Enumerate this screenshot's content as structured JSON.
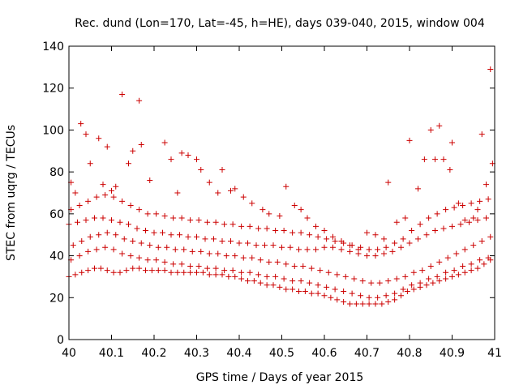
{
  "chart_data": {
    "type": "scatter",
    "title": "Rec. dund (Lon=170, Lat=-45, h=HE), days 039-040, 2015, window 004",
    "xlabel": "GPS time / Days of year 2015",
    "ylabel": "STEC from uqrg / TECUs",
    "xlim": [
      40,
      41
    ],
    "ylim": [
      0,
      140
    ],
    "xticks": [
      "40",
      "40.1",
      "40.2",
      "40.3",
      "40.4",
      "40.5",
      "40.6",
      "40.7",
      "40.8",
      "40.9",
      "41"
    ],
    "yticks": [
      "0",
      "20",
      "40",
      "60",
      "80",
      "100",
      "120",
      "140"
    ],
    "marker": "+",
    "color": "#cc0000",
    "grid": false,
    "legend": "none",
    "series": [
      {
        "name": "base_track",
        "x": [
          40.0,
          40.015,
          40.03,
          40.045,
          40.06,
          40.075,
          40.09,
          40.105,
          40.12,
          40.135,
          40.15,
          40.165,
          40.18,
          40.195,
          40.21,
          40.225,
          40.24,
          40.255,
          40.27,
          40.285,
          40.3,
          40.315,
          40.33,
          40.345,
          40.36,
          40.375,
          40.39,
          40.405,
          40.42,
          40.435,
          40.45,
          40.465,
          40.48,
          40.495,
          40.51,
          40.525,
          40.54,
          40.555,
          40.57,
          40.585,
          40.6,
          40.615,
          40.63,
          40.645,
          40.66,
          40.675,
          40.69,
          40.705,
          40.72,
          40.735,
          40.75,
          40.765,
          40.78,
          40.795,
          40.81,
          40.825,
          40.84,
          40.855,
          40.87,
          40.885,
          40.9,
          40.915,
          40.93,
          40.945,
          40.96,
          40.975,
          40.99
        ],
        "y": [
          30,
          31,
          32,
          33,
          34,
          34,
          33,
          32,
          32,
          33,
          34,
          34,
          33,
          33,
          33,
          33,
          32,
          32,
          32,
          32,
          32,
          32,
          31,
          31,
          31,
          30,
          30,
          29,
          28,
          28,
          27,
          26,
          26,
          25,
          24,
          24,
          23,
          23,
          22,
          22,
          21,
          20,
          19,
          18,
          17,
          17,
          17,
          17,
          17,
          17,
          18,
          19,
          21,
          23,
          24,
          25,
          26,
          27,
          28,
          29,
          30,
          31,
          32,
          33,
          34,
          36,
          38
        ]
      },
      {
        "name": "lower_mid_track",
        "x": [
          40.005,
          40.025,
          40.045,
          40.065,
          40.085,
          40.105,
          40.125,
          40.145,
          40.165,
          40.185,
          40.205,
          40.225,
          40.245,
          40.265,
          40.285,
          40.305,
          40.325,
          40.345,
          40.365,
          40.385,
          40.405,
          40.425,
          40.445,
          40.465,
          40.485,
          40.505,
          40.525,
          40.545,
          40.565,
          40.585,
          40.605,
          40.625,
          40.645,
          40.665,
          40.685,
          40.705,
          40.725,
          40.745,
          40.765,
          40.785,
          40.805,
          40.825,
          40.845,
          40.865,
          40.885,
          40.905,
          40.925,
          40.945,
          40.965,
          40.985
        ],
        "y": [
          38,
          40,
          42,
          43,
          44,
          43,
          41,
          40,
          39,
          38,
          38,
          37,
          36,
          36,
          35,
          35,
          34,
          34,
          33,
          33,
          32,
          32,
          31,
          30,
          30,
          29,
          28,
          28,
          27,
          26,
          25,
          24,
          23,
          22,
          21,
          20,
          20,
          21,
          22,
          24,
          26,
          27,
          29,
          30,
          32,
          33,
          35,
          36,
          38,
          39
        ]
      },
      {
        "name": "middle_track",
        "x": [
          40.01,
          40.03,
          40.05,
          40.07,
          40.09,
          40.11,
          40.13,
          40.15,
          40.17,
          40.19,
          40.21,
          40.23,
          40.25,
          40.27,
          40.29,
          40.31,
          40.33,
          40.35,
          40.37,
          40.39,
          40.41,
          40.43,
          40.45,
          40.47,
          40.49,
          40.51,
          40.53,
          40.55,
          40.57,
          40.59,
          40.61,
          40.63,
          40.65,
          40.67,
          40.69,
          40.71,
          40.73,
          40.75,
          40.77,
          40.79,
          40.81,
          40.83,
          40.85,
          40.87,
          40.89,
          40.91,
          40.93,
          40.95,
          40.97,
          40.99
        ],
        "y": [
          45,
          47,
          49,
          50,
          51,
          50,
          48,
          47,
          46,
          45,
          44,
          44,
          43,
          43,
          42,
          42,
          41,
          41,
          40,
          40,
          39,
          39,
          38,
          37,
          37,
          36,
          35,
          35,
          34,
          33,
          32,
          31,
          30,
          29,
          28,
          27,
          27,
          28,
          29,
          30,
          32,
          33,
          35,
          37,
          39,
          41,
          43,
          45,
          47,
          49
        ]
      },
      {
        "name": "upper_mid_track",
        "x": [
          40.0,
          40.02,
          40.04,
          40.06,
          40.08,
          40.1,
          40.12,
          40.14,
          40.16,
          40.18,
          40.2,
          40.22,
          40.24,
          40.26,
          40.28,
          40.3,
          40.32,
          40.34,
          40.36,
          40.38,
          40.4,
          40.42,
          40.44,
          40.46,
          40.48,
          40.5,
          40.52,
          40.54,
          40.56,
          40.58,
          40.6,
          40.62,
          40.64,
          40.66,
          40.68,
          40.7,
          40.72,
          40.74,
          40.76,
          40.78,
          40.8,
          40.82,
          40.84,
          40.86,
          40.88,
          40.9,
          40.92,
          40.94,
          40.96,
          40.98
        ],
        "y": [
          55,
          56,
          57,
          58,
          58,
          57,
          56,
          55,
          53,
          52,
          51,
          51,
          50,
          50,
          49,
          49,
          48,
          48,
          47,
          47,
          46,
          46,
          45,
          45,
          45,
          44,
          44,
          43,
          43,
          43,
          44,
          44,
          43,
          42,
          41,
          40,
          40,
          41,
          42,
          44,
          46,
          48,
          50,
          52,
          53,
          54,
          55,
          56,
          57,
          58
        ]
      },
      {
        "name": "high_track",
        "x": [
          40.005,
          40.025,
          40.045,
          40.065,
          40.085,
          40.105,
          40.125,
          40.145,
          40.165,
          40.185,
          40.205,
          40.225,
          40.245,
          40.265,
          40.285,
          40.305,
          40.325,
          40.345,
          40.365,
          40.385,
          40.405,
          40.425,
          40.445,
          40.465,
          40.485,
          40.505,
          40.525,
          40.545,
          40.565,
          40.585,
          40.605,
          40.625,
          40.645,
          40.665,
          40.685,
          40.705,
          40.725,
          40.745,
          40.765,
          40.785,
          40.805,
          40.825,
          40.845,
          40.865,
          40.885,
          40.905,
          40.925,
          40.945,
          40.965,
          40.985
        ],
        "y": [
          62,
          64,
          66,
          68,
          69,
          68,
          66,
          64,
          62,
          60,
          60,
          59,
          58,
          58,
          57,
          57,
          56,
          56,
          55,
          55,
          54,
          54,
          53,
          53,
          52,
          52,
          51,
          51,
          50,
          49,
          48,
          47,
          46,
          45,
          44,
          43,
          43,
          44,
          46,
          48,
          52,
          55,
          58,
          60,
          62,
          63,
          64,
          65,
          66,
          67
        ]
      },
      {
        "name": "scattered_high",
        "x": [
          40.005,
          40.015,
          40.028,
          40.04,
          40.05,
          40.07,
          40.08,
          40.09,
          40.1,
          40.11,
          40.125,
          40.14,
          40.15,
          40.165,
          40.17,
          40.19,
          40.225,
          40.24,
          40.255,
          40.265,
          40.28,
          40.3,
          40.31,
          40.33,
          40.35,
          40.36,
          40.38,
          40.39,
          40.41,
          40.43,
          40.455,
          40.47,
          40.495,
          40.51,
          40.53,
          40.545,
          40.56,
          40.58,
          40.6,
          40.62,
          40.64,
          40.66,
          40.68,
          40.7,
          40.72,
          40.74,
          40.75,
          40.77,
          40.79,
          40.8,
          40.82,
          40.835,
          40.85,
          40.86,
          40.87,
          40.88,
          40.895,
          40.9,
          40.915,
          40.93,
          40.95,
          40.96,
          40.97,
          40.98,
          40.99,
          40.995
        ],
        "y": [
          75,
          70,
          103,
          98,
          84,
          96,
          74,
          92,
          71,
          73,
          117,
          84,
          90,
          114,
          93,
          76,
          94,
          86,
          70,
          89,
          88,
          86,
          81,
          75,
          70,
          81,
          71,
          72,
          68,
          65,
          62,
          60,
          59,
          73,
          64,
          62,
          58,
          54,
          52,
          49,
          47,
          45,
          43,
          51,
          50,
          48,
          75,
          56,
          58,
          95,
          72,
          86,
          100,
          86,
          102,
          86,
          81,
          94,
          65,
          57,
          58,
          62,
          98,
          74,
          129,
          84
        ]
      }
    ]
  }
}
